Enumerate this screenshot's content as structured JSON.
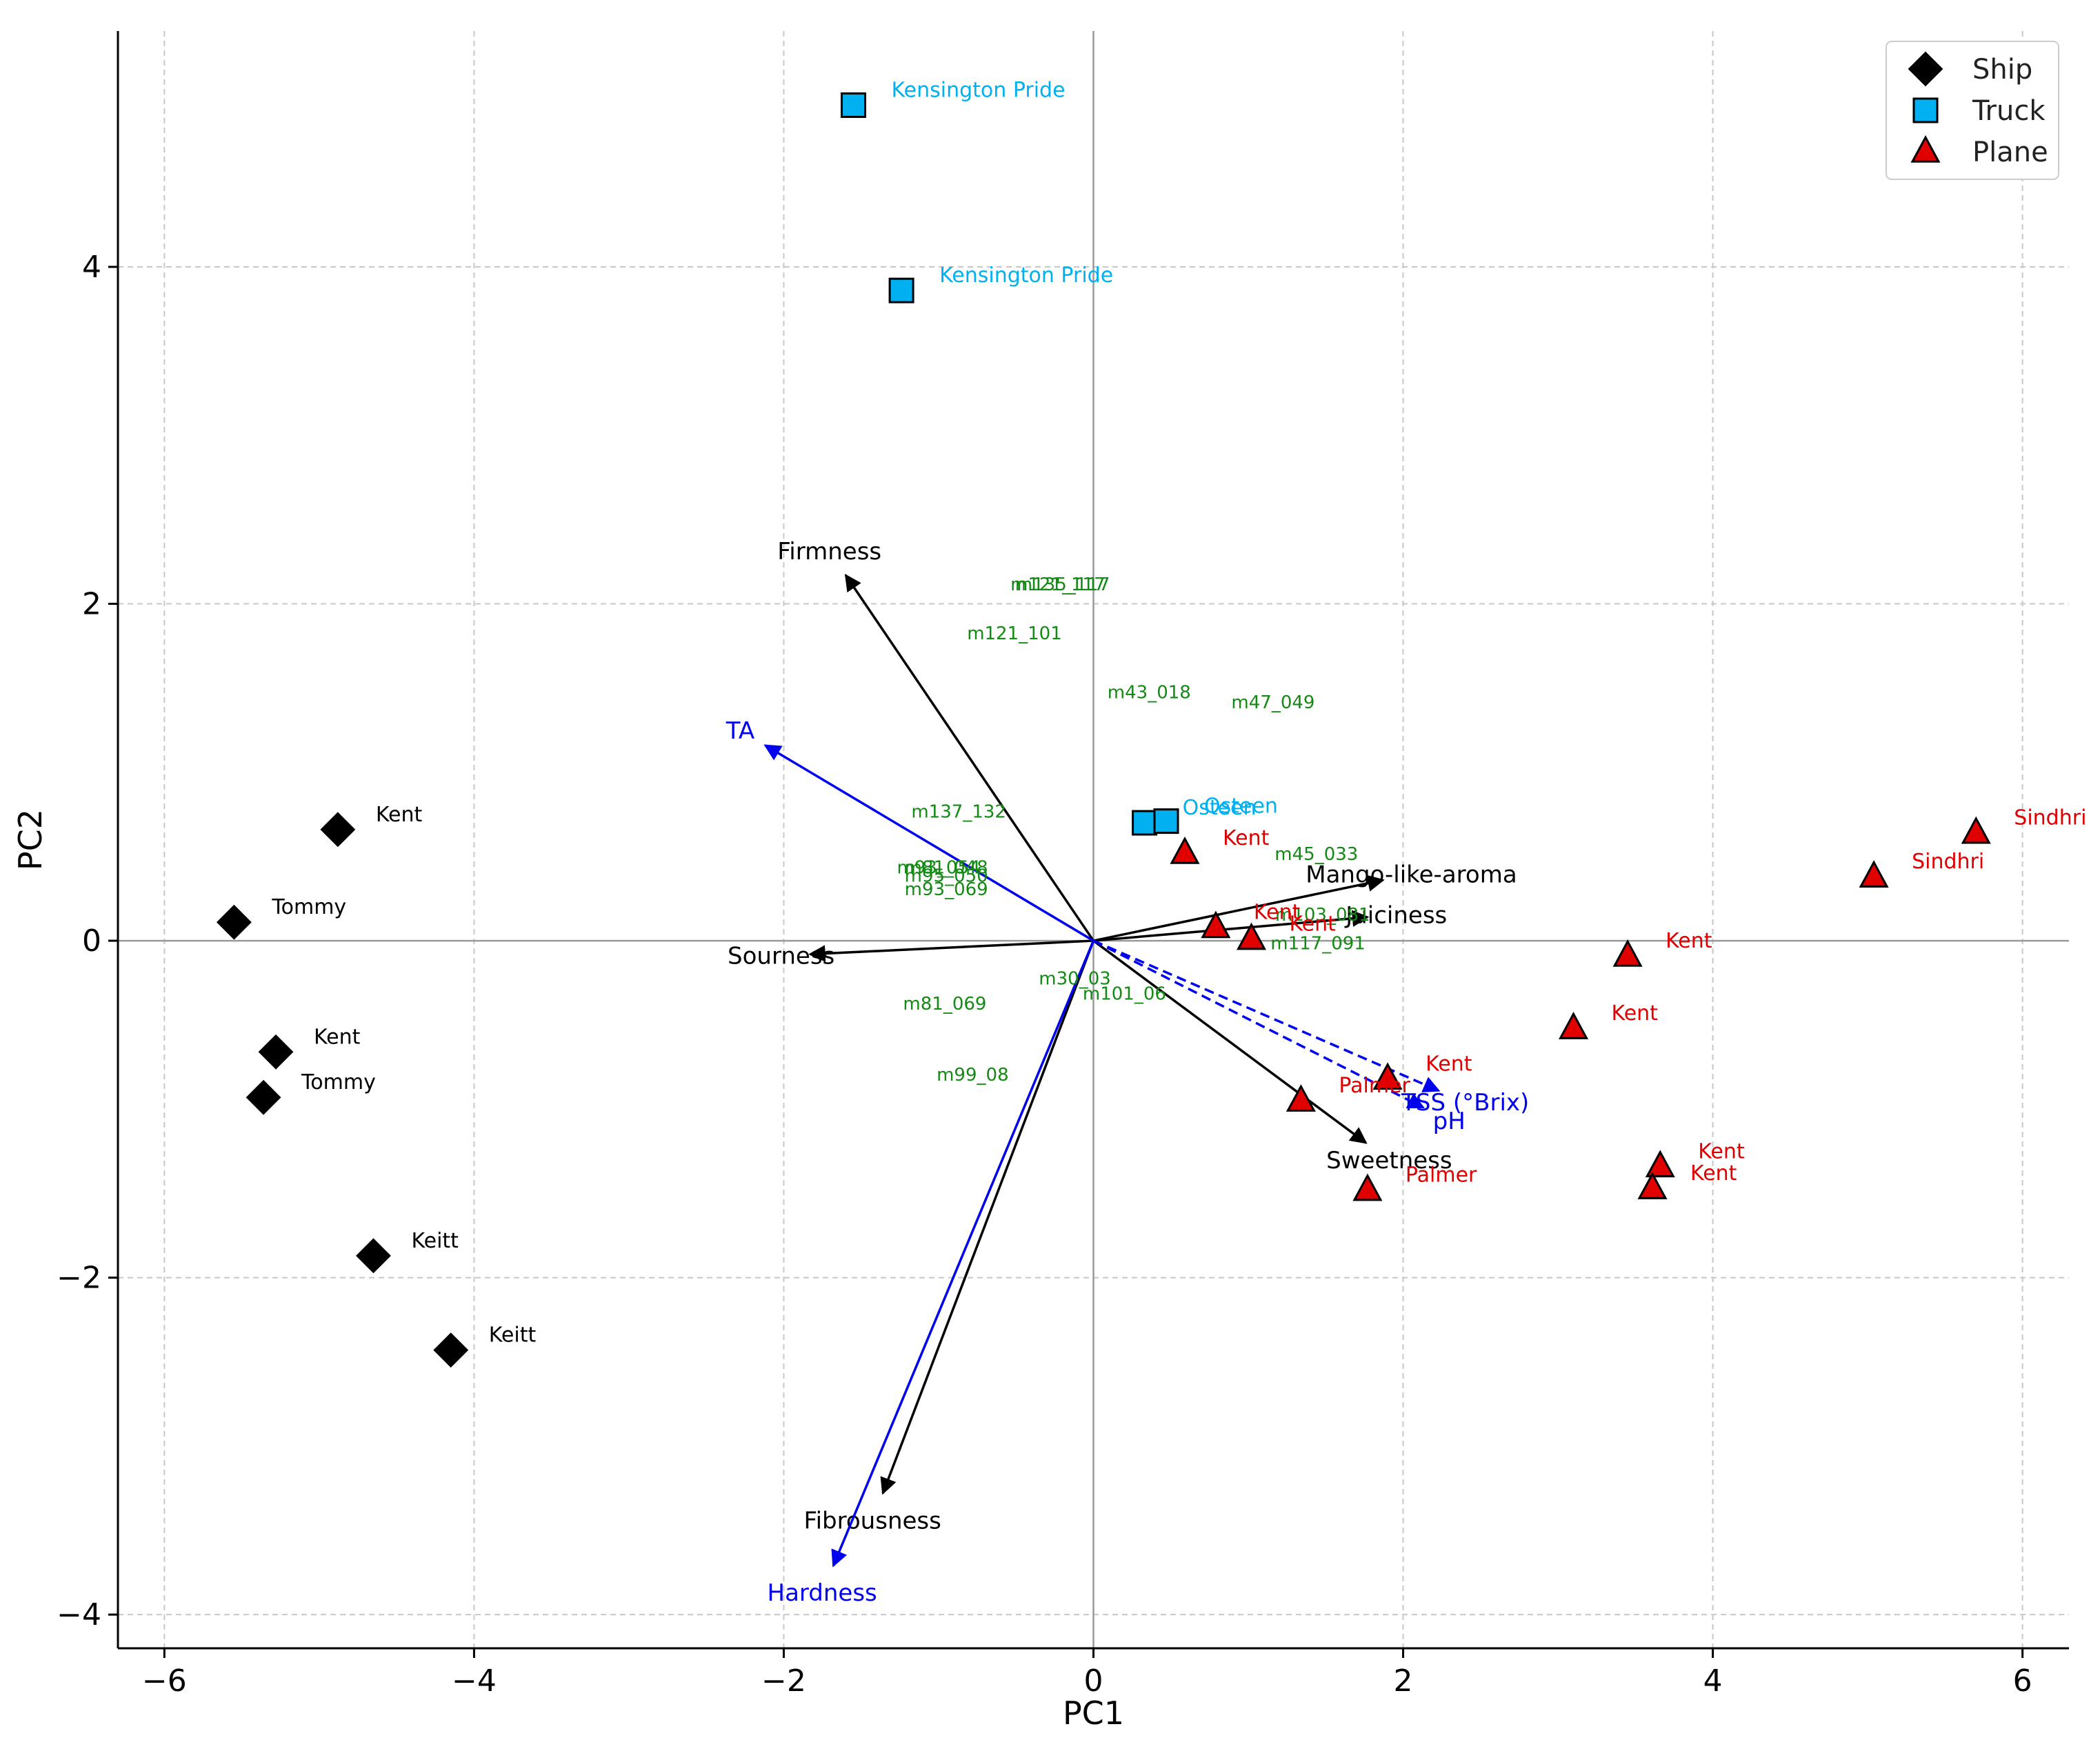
{
  "chart_data": {
    "type": "scatter",
    "xlabel": "PC1",
    "ylabel": "PC2",
    "xlim": [
      -6.3,
      6.3
    ],
    "ylim": [
      -4.2,
      5.4
    ],
    "xticks": [
      -6,
      -4,
      -2,
      0,
      2,
      4,
      6
    ],
    "yticks": [
      -4,
      -2,
      0,
      2,
      4
    ],
    "grid": true,
    "legend_position": "top-right",
    "colors": {
      "ship": "#000000",
      "truck": "#00b0f0",
      "plane": "#e00000",
      "sensory_vector": "#000000",
      "chemistry_vector": "#0000ee",
      "volatile": "#138a13"
    },
    "series": [
      {
        "name": "Ship",
        "marker": "diamond",
        "points": [
          {
            "x": -4.88,
            "y": 0.66,
            "label": "Kent"
          },
          {
            "x": -5.55,
            "y": 0.11,
            "label": "Tommy"
          },
          {
            "x": -5.28,
            "y": -0.66,
            "label": "Kent"
          },
          {
            "x": -5.36,
            "y": -0.93,
            "label": "Tommy"
          },
          {
            "x": -4.65,
            "y": -1.87,
            "label": "Keitt"
          },
          {
            "x": -4.15,
            "y": -2.43,
            "label": "Keitt"
          }
        ]
      },
      {
        "name": "Truck",
        "marker": "square",
        "points": [
          {
            "x": -1.55,
            "y": 4.96,
            "label": "Kensington Pride"
          },
          {
            "x": -1.24,
            "y": 3.86,
            "label": "Kensington Pride"
          },
          {
            "x": 0.33,
            "y": 0.7,
            "label": "Osteen"
          },
          {
            "x": 0.47,
            "y": 0.71,
            "label": "Osteen"
          }
        ]
      },
      {
        "name": "Plane",
        "marker": "triangle",
        "points": [
          {
            "x": 5.7,
            "y": 0.64,
            "label": "Sindhri"
          },
          {
            "x": 5.04,
            "y": 0.38,
            "label": "Sindhri"
          },
          {
            "x": 0.59,
            "y": 0.52,
            "label": "Kent"
          },
          {
            "x": 0.79,
            "y": 0.08,
            "label": "Kent"
          },
          {
            "x": 1.02,
            "y": 0.01,
            "label": "Kent"
          },
          {
            "x": 3.45,
            "y": -0.09,
            "label": "Kent"
          },
          {
            "x": 3.1,
            "y": -0.52,
            "label": "Kent"
          },
          {
            "x": 1.9,
            "y": -0.82,
            "label": "Kent"
          },
          {
            "x": 1.34,
            "y": -0.95,
            "label": "Palmer"
          },
          {
            "x": 3.66,
            "y": -1.34,
            "label": "Kent"
          },
          {
            "x": 3.61,
            "y": -1.47,
            "label": "Kent"
          },
          {
            "x": 1.77,
            "y": -1.48,
            "label": "Palmer"
          }
        ]
      }
    ],
    "sensory_vectors": [
      {
        "label": "Firmness",
        "x": -1.6,
        "y": 2.17
      },
      {
        "label": "Mango-like-aroma",
        "x": 1.87,
        "y": 0.36
      },
      {
        "label": "Juiciness",
        "x": 1.77,
        "y": 0.14
      },
      {
        "label": "Sourness",
        "x": -1.83,
        "y": -0.08
      },
      {
        "label": "Sweetness",
        "x": 1.76,
        "y": -1.2
      },
      {
        "label": "Fibrousness",
        "x": -1.36,
        "y": -3.28
      }
    ],
    "chemistry_vectors": [
      {
        "label": "TA",
        "x": -2.12,
        "y": 1.16
      },
      {
        "label": "Hardness",
        "x": -1.68,
        "y": -3.71
      },
      {
        "label": "TSS (°Brix)",
        "x": 2.23,
        "y": -0.89
      },
      {
        "label": "pH",
        "x": 2.13,
        "y": -0.99
      }
    ],
    "volatiles": [
      {
        "label": "m135_117",
        "x": -0.2,
        "y": 2.08
      },
      {
        "label": "m121_117",
        "x": -0.23,
        "y": 2.08
      },
      {
        "label": "m121_101",
        "x": -0.51,
        "y": 1.79
      },
      {
        "label": "m43_018",
        "x": 0.36,
        "y": 1.44
      },
      {
        "label": "m47_049",
        "x": 1.16,
        "y": 1.38
      },
      {
        "label": "m137_132",
        "x": -0.87,
        "y": 0.73
      },
      {
        "label": "m45_033",
        "x": 1.44,
        "y": 0.48
      },
      {
        "label": "m93_054",
        "x": -1.0,
        "y": 0.4
      },
      {
        "label": "m81_048",
        "x": -0.95,
        "y": 0.4
      },
      {
        "label": "m95_050",
        "x": -0.95,
        "y": 0.35
      },
      {
        "label": "m93_069",
        "x": -0.95,
        "y": 0.27
      },
      {
        "label": "m103_081",
        "x": 1.48,
        "y": 0.12
      },
      {
        "label": "m117_091",
        "x": 1.45,
        "y": -0.05
      },
      {
        "label": "m30_03",
        "x": -0.12,
        "y": -0.26
      },
      {
        "label": "m101_06",
        "x": 0.2,
        "y": -0.35
      },
      {
        "label": "m81_069",
        "x": -0.96,
        "y": -0.41
      },
      {
        "label": "m99_08",
        "x": -0.78,
        "y": -0.83
      }
    ]
  }
}
